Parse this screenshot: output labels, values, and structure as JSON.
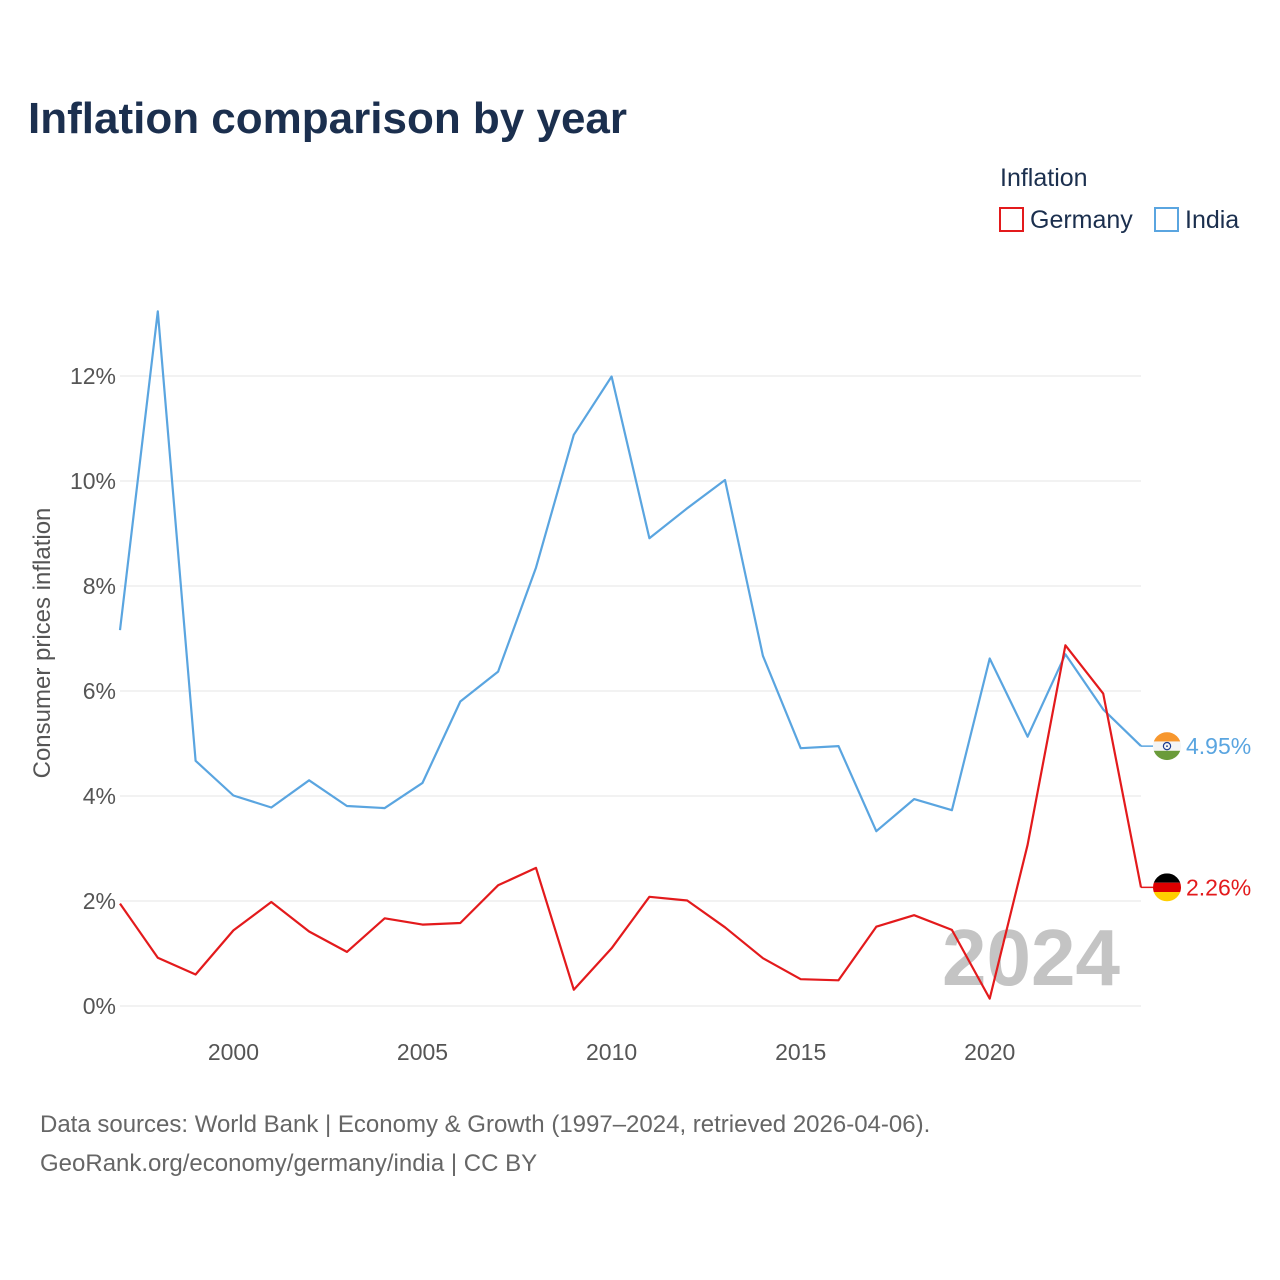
{
  "title": "Inflation comparison by year",
  "legend": {
    "title": "Inflation",
    "items": [
      {
        "label": "Germany",
        "color": "#e31a1c"
      },
      {
        "label": "India",
        "color": "#5aa5e0"
      }
    ]
  },
  "watermark_year": "2024",
  "source_lines": [
    "Data sources: World Bank | Economy & Growth (1997–2024, retrieved 2026-04-06).",
    "GeoRank.org/economy/germany/india | CC BY"
  ],
  "chart_data": {
    "type": "line",
    "title": "Inflation comparison by year",
    "xlabel": "",
    "ylabel": "Consumer prices inflation",
    "xlim": [
      1997,
      2024
    ],
    "ylim": [
      0,
      13.2
    ],
    "x_ticks": [
      2000,
      2005,
      2010,
      2015,
      2020
    ],
    "x_tick_labels": [
      "2000",
      "2005",
      "2010",
      "2015",
      "2020"
    ],
    "y_ticks": [
      0,
      2,
      4,
      6,
      8,
      10,
      12
    ],
    "y_tick_labels": [
      "0%",
      "2%",
      "4%",
      "6%",
      "8%",
      "10%",
      "12%"
    ],
    "grid": true,
    "legend_position": "top-right",
    "x": [
      1997,
      1998,
      1999,
      2000,
      2001,
      2002,
      2003,
      2004,
      2005,
      2006,
      2007,
      2008,
      2009,
      2010,
      2011,
      2012,
      2013,
      2014,
      2015,
      2016,
      2017,
      2018,
      2019,
      2020,
      2021,
      2022,
      2023,
      2024
    ],
    "series": [
      {
        "name": "Germany",
        "color": "#e31a1c",
        "end_label": "2.26%",
        "flag": "germany-flag",
        "values": [
          1.95,
          0.92,
          0.6,
          1.44,
          1.98,
          1.42,
          1.03,
          1.67,
          1.55,
          1.58,
          2.3,
          2.63,
          0.31,
          1.1,
          2.08,
          2.01,
          1.5,
          0.91,
          0.51,
          0.49,
          1.51,
          1.73,
          1.45,
          0.14,
          3.07,
          6.87,
          5.95,
          2.26
        ]
      },
      {
        "name": "India",
        "color": "#5aa5e0",
        "end_label": "4.95%",
        "flag": "india-flag",
        "values": [
          7.16,
          13.23,
          4.67,
          4.01,
          3.78,
          4.3,
          3.81,
          3.77,
          4.25,
          5.8,
          6.37,
          8.35,
          10.88,
          11.99,
          8.91,
          9.48,
          10.02,
          6.67,
          4.91,
          4.95,
          3.33,
          3.94,
          3.73,
          6.62,
          5.13,
          6.7,
          5.65,
          4.95
        ]
      }
    ]
  }
}
